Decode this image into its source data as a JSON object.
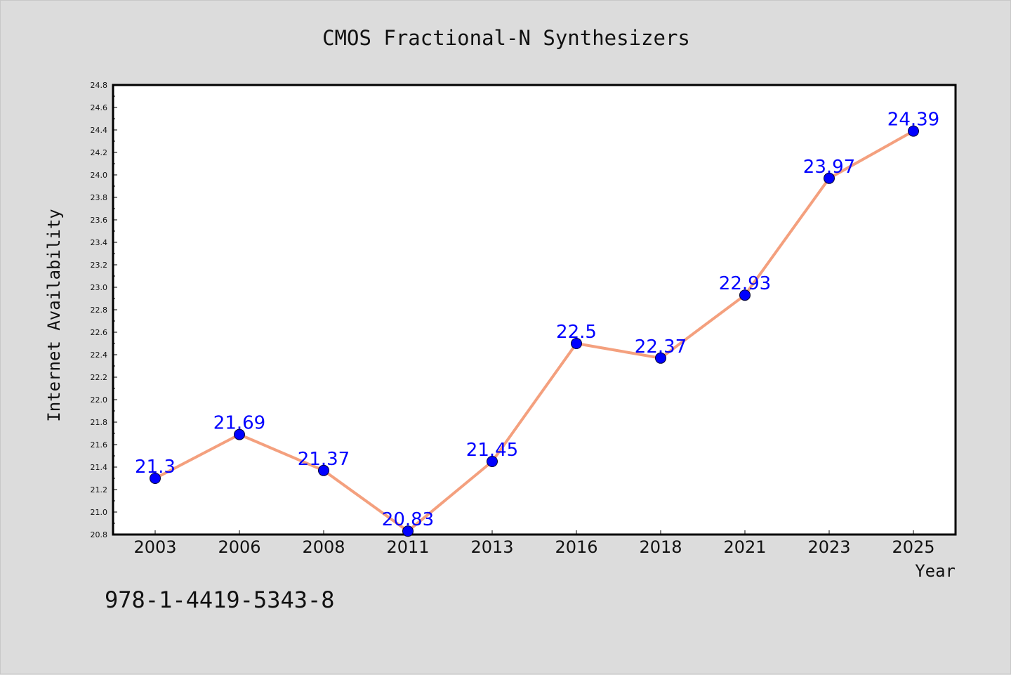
{
  "chart_data": {
    "type": "line",
    "title": "CMOS Fractional-N Synthesizers",
    "xlabel": "Year",
    "ylabel": "Internet Availability",
    "categories": [
      "2003",
      "2006",
      "2008",
      "2011",
      "2013",
      "2016",
      "2018",
      "2021",
      "2023",
      "2025"
    ],
    "series": [
      {
        "values": [
          21.3,
          21.69,
          21.37,
          20.83,
          21.45,
          22.5,
          22.37,
          22.93,
          23.97,
          24.39
        ],
        "data_labels": [
          "21.3",
          "21.69",
          "21.37",
          "20.83",
          "21.45",
          "22.5",
          "22.37",
          "22.93",
          "23.97",
          "24.39"
        ]
      }
    ],
    "ylim": [
      20.8,
      24.8
    ],
    "yticks": [
      "20.8",
      "21.0",
      "21.2",
      "21.4",
      "21.6",
      "21.8",
      "22.0",
      "22.2",
      "22.4",
      "22.6",
      "22.8",
      "23.0",
      "23.2",
      "23.4",
      "23.6",
      "23.8",
      "24.0",
      "24.2",
      "24.4",
      "24.6",
      "24.8"
    ],
    "grid": false,
    "line_color": "#f4a07e",
    "marker_color": "#0000ff",
    "label_color": "#0000ff"
  },
  "footer": {
    "text": "978-1-4419-5343-8"
  },
  "colors": {
    "background": "#dcdcdc",
    "plot_background": "#ffffff"
  }
}
